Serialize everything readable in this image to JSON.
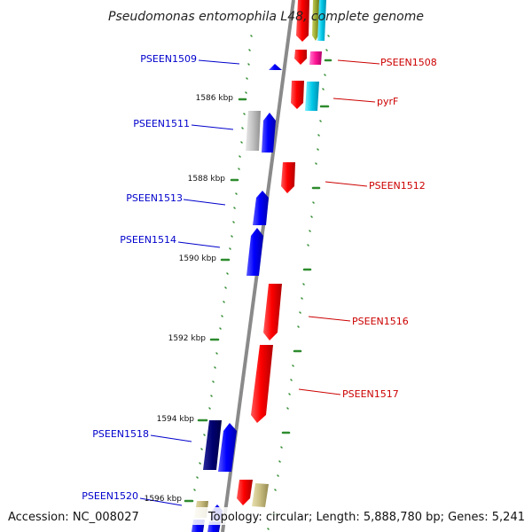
{
  "title": "Pseudomonas entomophila L48, complete genome",
  "footer": {
    "accession": "Accession: NC_008027",
    "summary": "Topology: circular; Length: 5,888,780 bp; Genes: 5,241"
  },
  "colors": {
    "backbone": "#8a8a8a",
    "tick": "#2e8b2e",
    "label_left": "#0000cc",
    "label_right": "#cc0000"
  },
  "scale_labels": [
    "1586 kbp",
    "1588 kbp",
    "1590 kbp",
    "1592 kbp",
    "1594 kbp",
    "1596 kbp"
  ],
  "gene_labels_left": [
    "PSEEN1509",
    "PSEEN1511",
    "PSEEN1513",
    "PSEEN1514",
    "PSEEN1518",
    "PSEEN1520"
  ],
  "gene_labels_right": [
    "PSEEN1508",
    "pyrF",
    "PSEEN1512",
    "PSEEN1516",
    "PSEEN1517"
  ]
}
